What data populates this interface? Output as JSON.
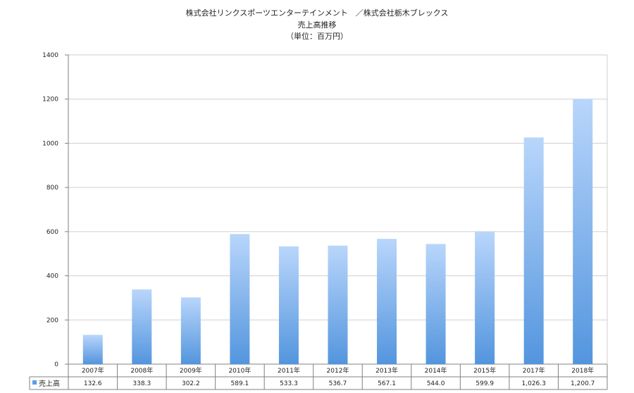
{
  "chart_data": {
    "type": "bar",
    "title": "株式会社リンクスポーツエンターテインメント　／株式会社栃木ブレックス",
    "subtitle": "売上高推移",
    "unit": "（単位：百万円）",
    "categories": [
      "2007年",
      "2008年",
      "2009年",
      "2010年",
      "2011年",
      "2012年",
      "2013年",
      "2014年",
      "2015年",
      "2017年",
      "2018年"
    ],
    "series": [
      {
        "name": "売上高",
        "values": [
          132.6,
          338.3,
          302.2,
          589.1,
          533.3,
          536.7,
          567.1,
          544.0,
          599.9,
          1026.3,
          1200.7
        ],
        "labels": [
          "132.6",
          "338.3",
          "302.2",
          "589.1",
          "533.3",
          "536.7",
          "567.1",
          "544.0",
          "599.9",
          "1,026.3",
          "1,200.7"
        ]
      }
    ],
    "ylim": [
      0,
      1400
    ],
    "yticks": [
      0,
      200,
      400,
      600,
      800,
      1000,
      1200,
      1400
    ],
    "grid": true,
    "legend": "data table",
    "colors": {
      "bar_top": "#b9d6fb",
      "bar_bottom": "#5395de",
      "grid": "#cfcfcf",
      "axis": "#808080",
      "legend_marker": "#5b9ee6"
    }
  }
}
